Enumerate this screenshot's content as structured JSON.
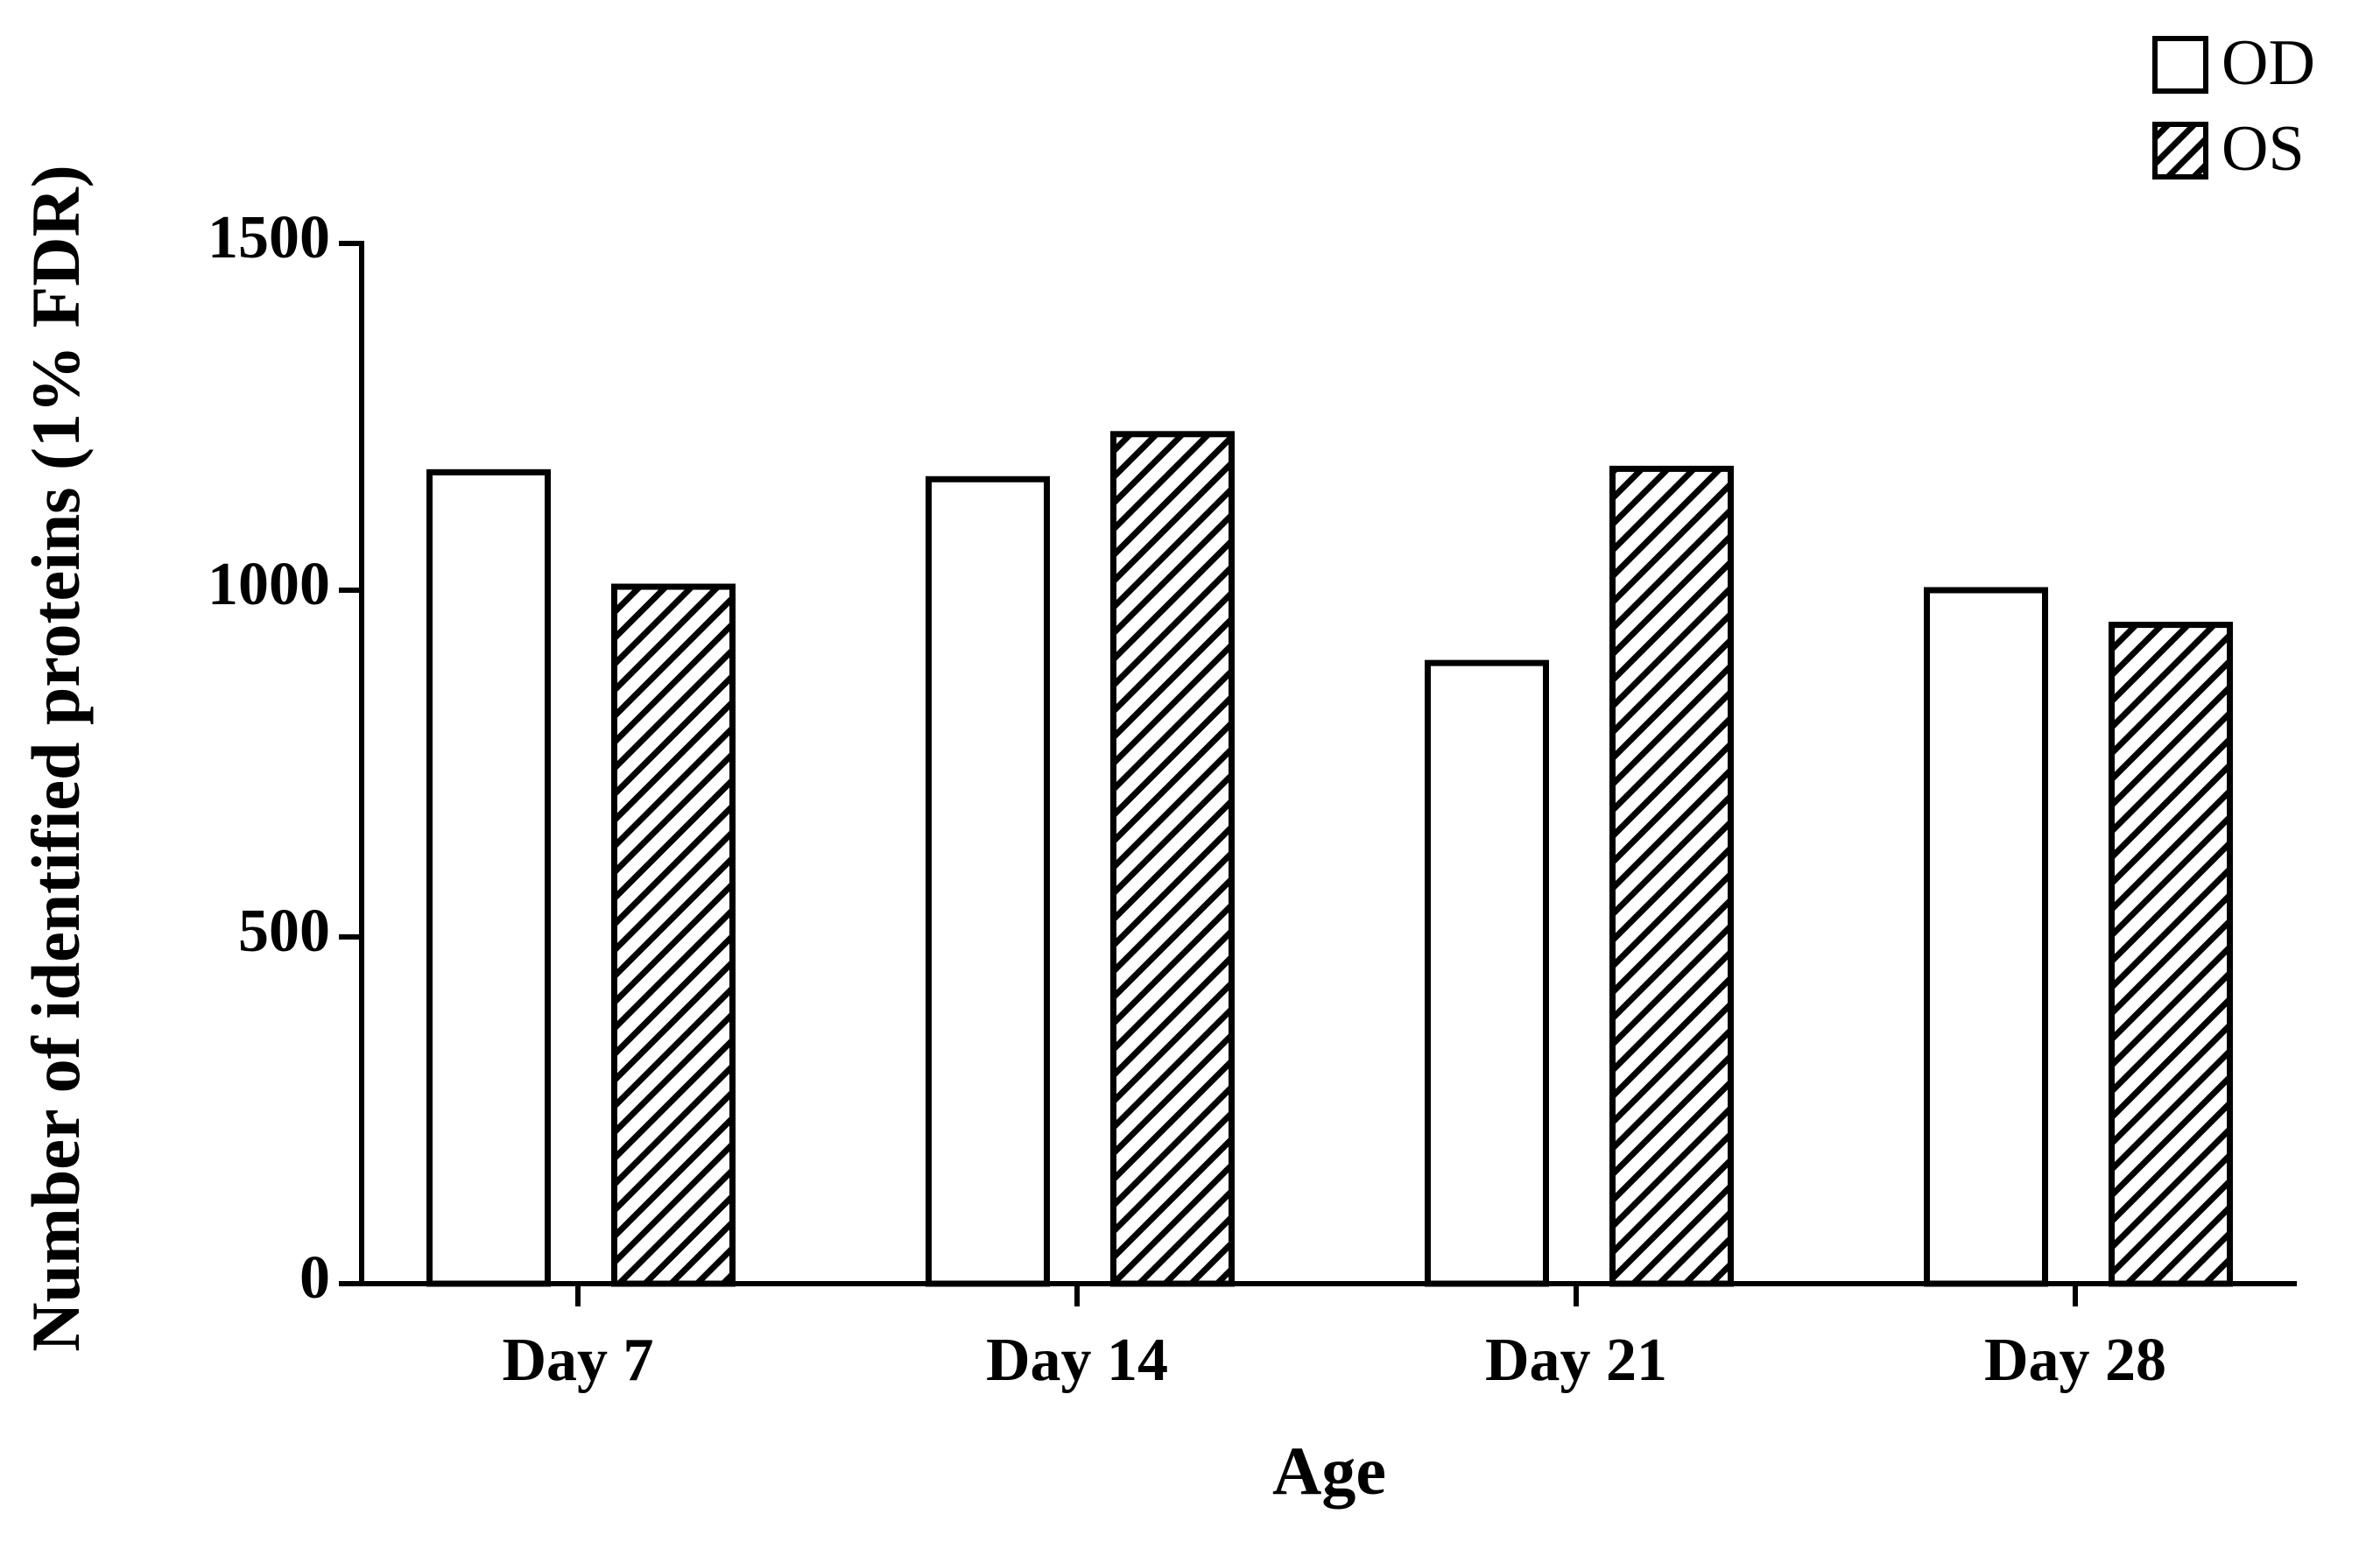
{
  "chart_data": {
    "type": "bar",
    "x_label": "Age",
    "y_label": "Number of identified proteins (1% FDR)",
    "categories": [
      "Day 7",
      "Day 14",
      "Day 21",
      "Day 28"
    ],
    "series": [
      {
        "name": "OD",
        "color": "#000000",
        "pattern": "none",
        "values": [
          1170,
          1160,
          895,
          1000
        ]
      },
      {
        "name": "OS",
        "color": "#000000",
        "pattern": "hatch",
        "values": [
          1005,
          1225,
          1175,
          950
        ]
      }
    ],
    "ylim": [
      0,
      1500
    ],
    "yticks": [
      0,
      500,
      1000,
      1500
    ],
    "grid": false,
    "legend": "top-right"
  }
}
